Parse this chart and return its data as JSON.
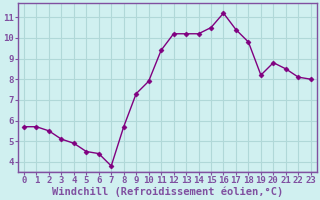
{
  "x": [
    0,
    1,
    2,
    3,
    4,
    5,
    6,
    7,
    8,
    9,
    10,
    11,
    12,
    13,
    14,
    15,
    16,
    17,
    18,
    19,
    20,
    21,
    22,
    23
  ],
  "y": [
    5.7,
    5.7,
    5.5,
    5.1,
    4.9,
    4.5,
    4.4,
    3.8,
    5.7,
    7.3,
    7.9,
    9.4,
    10.2,
    10.2,
    10.2,
    10.5,
    11.2,
    10.4,
    9.8,
    8.2,
    8.8,
    8.5,
    8.1,
    8.0
  ],
  "line_color": "#800080",
  "marker": "D",
  "marker_size": 2.5,
  "line_width": 1.0,
  "bg_color": "#d0f0f0",
  "grid_color": "#b0d8d8",
  "spine_color": "#8050a0",
  "xlabel": "Windchill (Refroidissement éolien,°C)",
  "xlabel_fontsize": 7.5,
  "tick_fontsize": 6.5,
  "xlim": [
    -0.5,
    23.5
  ],
  "ylim": [
    3.5,
    11.7
  ],
  "yticks": [
    4,
    5,
    6,
    7,
    8,
    9,
    10,
    11
  ],
  "xticks": [
    0,
    1,
    2,
    3,
    4,
    5,
    6,
    7,
    8,
    9,
    10,
    11,
    12,
    13,
    14,
    15,
    16,
    17,
    18,
    19,
    20,
    21,
    22,
    23
  ]
}
